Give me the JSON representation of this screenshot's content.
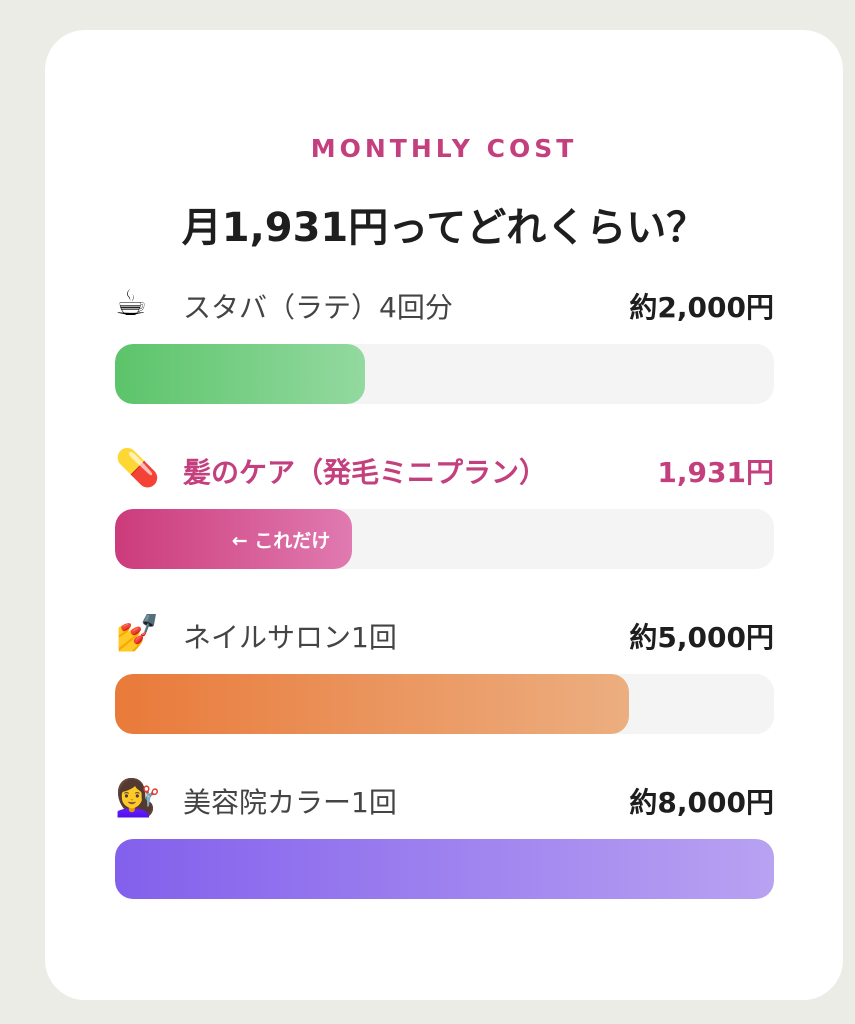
{
  "header": {
    "eyebrow": "MONTHLY COST",
    "title": "月1,931円ってどれくらい？"
  },
  "chart_data": {
    "type": "bar",
    "orientation": "horizontal",
    "categories": [
      "スタバ（ラテ）4回分",
      "髪のケア（発毛ミニプラン）",
      "ネイルサロン1回",
      "美容院カラー1回"
    ],
    "values": [
      2000,
      1931,
      5000,
      8000
    ],
    "unit": "円"
  },
  "items": [
    {
      "icon": "coffee-icon",
      "emoji": "☕",
      "label": "スタバ（ラテ）4回分",
      "value": "約2,000円",
      "fill_pct": 38,
      "colors": [
        "#5cc46a",
        "#93d9a0"
      ],
      "highlight": false,
      "bar_text": ""
    },
    {
      "icon": "pill-icon",
      "emoji": "💊",
      "label": "髪のケア（発毛ミニプラン）",
      "value": "1,931円",
      "fill_pct": 36,
      "colors": [
        "#cc3b7b",
        "#e07ab0"
      ],
      "highlight": true,
      "bar_text": "← これだけ"
    },
    {
      "icon": "nail-polish-icon",
      "emoji": "💅",
      "label": "ネイルサロン1回",
      "value": "約5,000円",
      "fill_pct": 78,
      "colors": [
        "#e97a3a",
        "#ecae80"
      ],
      "highlight": false,
      "bar_text": ""
    },
    {
      "icon": "haircut-icon",
      "emoji": "💇‍♀️",
      "label": "美容院カラー1回",
      "value": "約8,000円",
      "fill_pct": 100,
      "colors": [
        "#8360ec",
        "#b8a2f2"
      ],
      "highlight": false,
      "bar_text": ""
    }
  ]
}
